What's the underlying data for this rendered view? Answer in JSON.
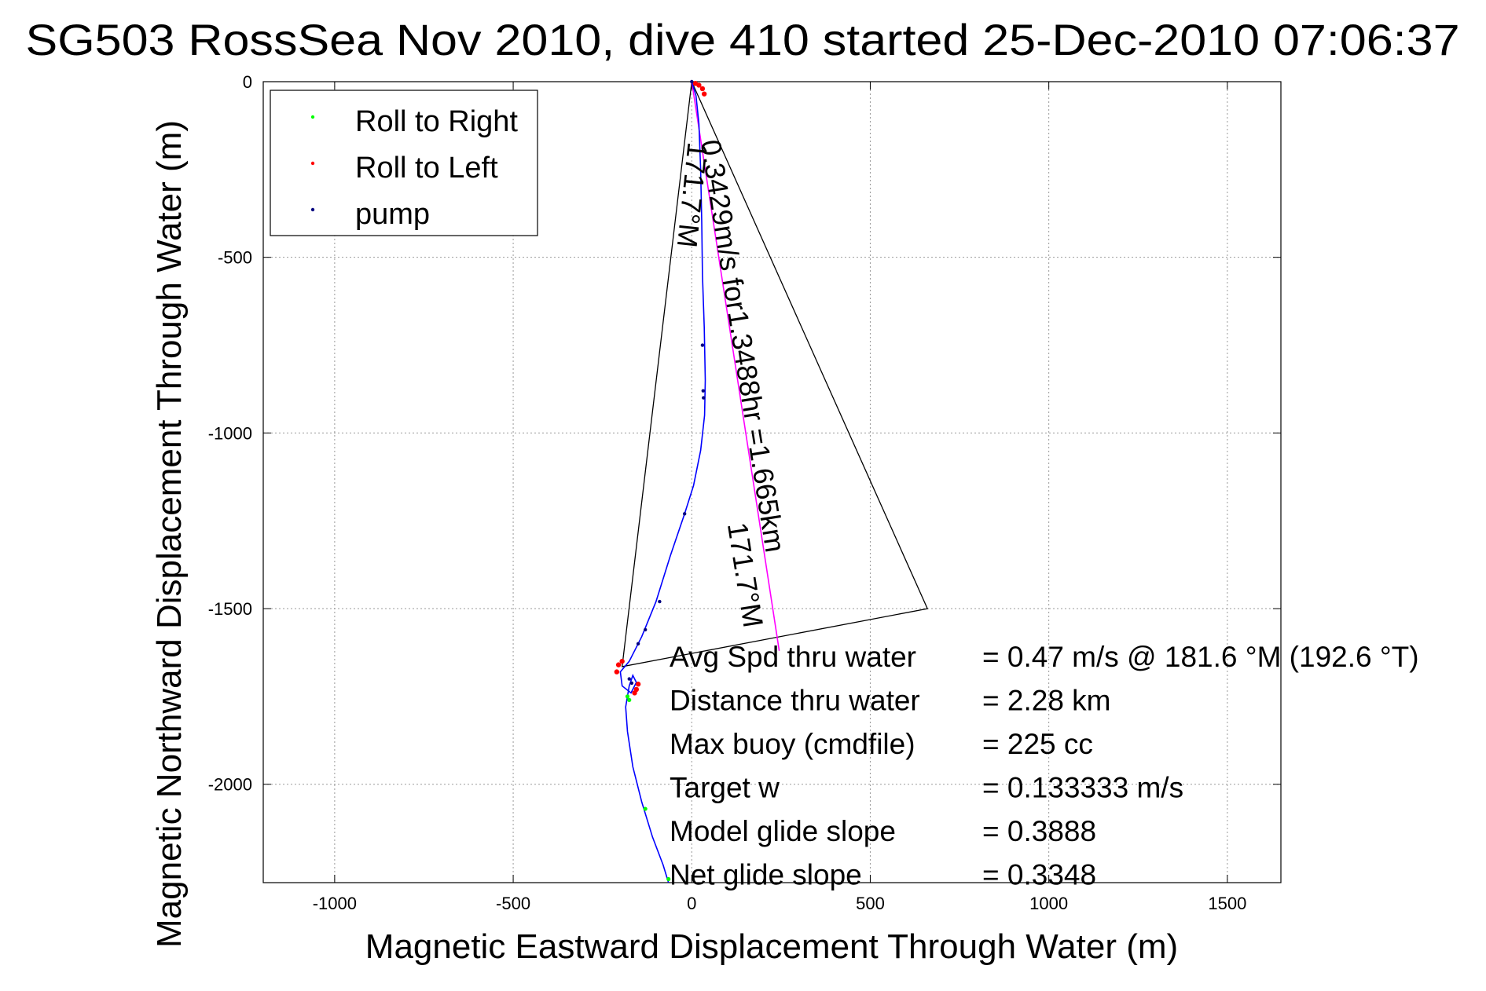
{
  "chart_data": {
    "type": "scatter",
    "title": "SG503 RossSea Nov 2010, dive 410 started 25-Dec-2010 07:06:37",
    "xlabel": "Magnetic Eastward Displacement Through Water (m)",
    "ylabel": "Magnetic Northward Displacement Through Water (m)",
    "xlim": [
      -1200,
      1650
    ],
    "ylim": [
      -2280,
      0
    ],
    "xticks": [
      -1000,
      -500,
      0,
      500,
      1000,
      1500
    ],
    "yticks": [
      0,
      -500,
      -1000,
      -1500,
      -2000
    ],
    "grid": true,
    "legend_position": "top-left",
    "legend": [
      {
        "name": "Roll to Right",
        "color": "#00ff00"
      },
      {
        "name": "Roll to Left",
        "color": "#ff0000"
      },
      {
        "name": "pump",
        "color": "#000080"
      }
    ],
    "track": {
      "color": "#0000ff",
      "points": [
        [
          0,
          0
        ],
        [
          12,
          -40
        ],
        [
          20,
          -120
        ],
        [
          25,
          -250
        ],
        [
          28,
          -400
        ],
        [
          30,
          -550
        ],
        [
          35,
          -700
        ],
        [
          38,
          -850
        ],
        [
          36,
          -950
        ],
        [
          25,
          -1050
        ],
        [
          5,
          -1150
        ],
        [
          -20,
          -1230
        ],
        [
          -60,
          -1350
        ],
        [
          -100,
          -1480
        ],
        [
          -140,
          -1580
        ],
        [
          -175,
          -1650
        ],
        [
          -200,
          -1680
        ],
        [
          -195,
          -1720
        ],
        [
          -170,
          -1740
        ],
        [
          -155,
          -1710
        ],
        [
          -165,
          -1690
        ],
        [
          -175,
          -1720
        ],
        [
          -185,
          -1780
        ],
        [
          -180,
          -1850
        ],
        [
          -165,
          -1950
        ],
        [
          -140,
          -2050
        ],
        [
          -110,
          -2150
        ],
        [
          -80,
          -2230
        ],
        [
          -65,
          -2280
        ]
      ]
    },
    "roll_right": [
      [
        -180,
        -1750
      ],
      [
        -130,
        -2070
      ],
      [
        -65,
        -2270
      ],
      [
        -175,
        -1760
      ]
    ],
    "roll_left": [
      [
        10,
        -5
      ],
      [
        20,
        -10
      ],
      [
        30,
        -20
      ],
      [
        35,
        -35
      ],
      [
        -205,
        -1660
      ],
      [
        -210,
        -1680
      ],
      [
        -195,
        -1650
      ],
      [
        -155,
        -1730
      ],
      [
        -150,
        -1715
      ],
      [
        -160,
        -1740
      ]
    ],
    "pump": [
      [
        0,
        0
      ],
      [
        30,
        -750
      ],
      [
        32,
        -880
      ],
      [
        33,
        -900
      ],
      [
        -20,
        -1230
      ],
      [
        -90,
        -1480
      ],
      [
        -130,
        -1560
      ],
      [
        -150,
        -1600
      ],
      [
        -175,
        -1700
      ],
      [
        -168,
        -1712
      ]
    ],
    "current_line": {
      "color": "#ff00ff",
      "points": [
        [
          0,
          0
        ],
        [
          245,
          -1620
        ]
      ]
    },
    "triangle": {
      "color": "#000000",
      "points": [
        [
          -195,
          -1665
        ],
        [
          0,
          0
        ],
        [
          660,
          -1500
        ]
      ]
    },
    "annotations": [
      {
        "text": "171.7°M",
        "x": -10,
        "y": -170,
        "rotation": 96
      },
      {
        "text": "0.3429m/s for1.3488hr =1.665km",
        "x": 25,
        "y": -170,
        "rotation": 81
      },
      {
        "text": "171.7°M",
        "x": 100,
        "y": -1260,
        "rotation": 81
      }
    ],
    "stats": [
      {
        "label": "Avg Spd thru water",
        "value": "=  0.47 m/s @ 181.6 °M (192.6 °T)"
      },
      {
        "label": "Distance thru water",
        "value": "=  2.28 km"
      },
      {
        "label": "Max buoy (cmdfile)",
        "value": "= 225 cc"
      },
      {
        "label": "Target w",
        "value": "= 0.133333 m/s"
      },
      {
        "label": "Model glide slope",
        "value": "= 0.3888"
      },
      {
        "label": "Net glide slope",
        "value": "= 0.3348"
      }
    ]
  }
}
